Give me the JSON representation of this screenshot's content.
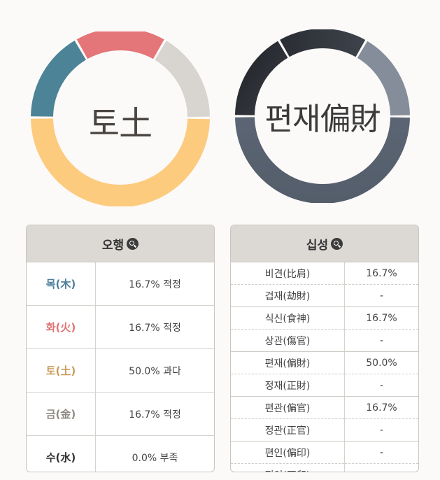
{
  "ohaeng_chart": {
    "center": "토土",
    "segments": [
      {
        "value": 16.7,
        "color": "#4d8397"
      },
      {
        "value": 16.7,
        "color": "#e47578"
      },
      {
        "value": 16.7,
        "color": "#d8d5d0"
      },
      {
        "value": 50.0,
        "color": "#fdcb7e"
      }
    ]
  },
  "sipsung_chart": {
    "center": "편재偏財",
    "segments": [
      {
        "value": 16.7,
        "color": "#2a2c31"
      },
      {
        "value": 16.7,
        "color": "#2f333a"
      },
      {
        "value": 16.7,
        "color": "#848d99"
      },
      {
        "value": 50.0,
        "color": "#555f6d"
      }
    ]
  },
  "ohaeng_panel": {
    "title": "오행",
    "rows": [
      {
        "name": "목(木)",
        "value": "16.7% 적정",
        "color": "#4d7e9a"
      },
      {
        "name": "화(火)",
        "value": "16.7% 적정",
        "color": "#e07272"
      },
      {
        "name": "토(土)",
        "value": "50.0% 과다",
        "color": "#c99a58"
      },
      {
        "name": "금(金)",
        "value": "16.7% 적정",
        "color": "#8f8a84"
      },
      {
        "name": "수(水)",
        "value": "0.0% 부족",
        "color": "#333333"
      }
    ]
  },
  "sipsung_panel": {
    "title": "십성",
    "rows": [
      {
        "name": "비견(比肩)",
        "value": "16.7%"
      },
      {
        "name": "겁재(劫財)",
        "value": "-"
      },
      {
        "name": "식신(食神)",
        "value": "16.7%"
      },
      {
        "name": "상관(傷官)",
        "value": "-"
      },
      {
        "name": "편재(偏財)",
        "value": "50.0%"
      },
      {
        "name": "정재(正財)",
        "value": "-"
      },
      {
        "name": "편관(偏官)",
        "value": "16.7%"
      },
      {
        "name": "정관(正官)",
        "value": "-"
      },
      {
        "name": "편인(偏印)",
        "value": "-"
      },
      {
        "name": "정인(正印)",
        "value": "-"
      }
    ]
  }
}
